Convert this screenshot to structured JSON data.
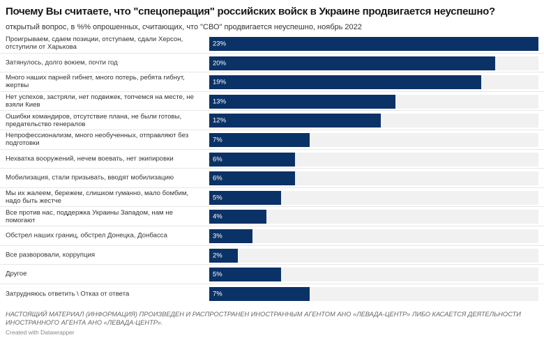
{
  "colors": {
    "bar": "#0b3266",
    "track": "#f1f1f1"
  },
  "chart_data": {
    "type": "bar",
    "orientation": "horizontal",
    "title": "Почему Вы считаете, что \"спецоперация\" российских войск в Украине продвигается неуспешно?",
    "subtitle": "открытый вопрос, в %% опрошенных, считающих, что \"СВО\" продвигается неуспешно, ноябрь 2022",
    "categories": [
      "Проигрываем, сдаем позиции, отступаем, сдали Херсон, отступили от Харькова",
      "Затянулось, долго воюем, почти год",
      "Много наших парней гибнет, много потерь, ребята гибнут, жертвы",
      "Нет успехов, застряли, нет подвижек, топчемся на месте, не взяли Киев",
      "Ошибки командиров, отсутствие плана, не были готовы, предательство генералов",
      "Непрофессионализм, много необученных, отправляют без подготовки",
      "Нехватка вооружений, нечем воевать, нет экипировки",
      "Мобилизация, стали призывать, вводят мобилизацию",
      "Мы их жалеем, бережем, слишком гуманно, мало бомбим, надо быть жестче",
      "Все против нас, поддержка Украины Западом, нам не помогают",
      "Обстрел наших границ, обстрел Донецка, Донбасса",
      "Все разворовали, коррупция",
      "Другое",
      "Затрудняюсь ответить \\ Отказ от ответа"
    ],
    "values": [
      23,
      20,
      19,
      13,
      12,
      7,
      6,
      6,
      5,
      4,
      3,
      2,
      5,
      7
    ],
    "value_labels": [
      "23%",
      "20%",
      "19%",
      "13%",
      "12%",
      "7%",
      "6%",
      "6%",
      "5%",
      "4%",
      "3%",
      "2%",
      "5%",
      "7%"
    ],
    "xlim": [
      0,
      23
    ],
    "grid": false
  },
  "footer": {
    "notes": "НАСТОЯЩИЙ МАТЕРИАЛ (ИНФОРМАЦИЯ) ПРОИЗВЕДЕН И РАСПРОСТРАНЕН ИНОСТРАННЫМ АГЕНТОМ АНО «ЛЕВАДА-ЦЕНТР» ЛИБО КАСАЕТСЯ ДЕЯТЕЛЬНОСТИ ИНОСТРАННОГО АГЕНТА АНО «ЛЕВАДА-ЦЕНТР».",
    "credit": "Created with Datawrapper"
  }
}
